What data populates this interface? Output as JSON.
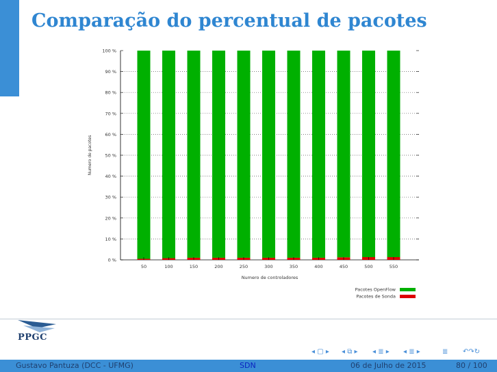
{
  "slide": {
    "title": "Comparação do percentual de pacotes"
  },
  "chart_data": {
    "type": "bar",
    "stacked": true,
    "categories": [
      "50",
      "100",
      "150",
      "200",
      "250",
      "300",
      "350",
      "400",
      "450",
      "500",
      "550"
    ],
    "series": [
      {
        "name": "Pacotes de Sonda",
        "color": "#dd0000",
        "values": [
          0.5,
          0.8,
          1.0,
          1.0,
          1.0,
          1.0,
          1.0,
          1.0,
          1.2,
          1.3,
          1.3
        ]
      },
      {
        "name": "Pacotes OpenFlow",
        "color": "#00b000",
        "values": [
          99.5,
          99.2,
          99.0,
          99.0,
          99.0,
          99.0,
          99.0,
          99.0,
          98.8,
          98.7,
          98.7
        ]
      }
    ],
    "ylim": [
      0,
      100
    ],
    "yticks": [
      "0 %",
      "10 %",
      "20 %",
      "30 %",
      "40 %",
      "50 %",
      "60 %",
      "70 %",
      "80 %",
      "90 %",
      "100 %"
    ],
    "xlabel": "Numero de controladores",
    "ylabel": "Numero de pacotes",
    "grid": "horizontal dotted",
    "legend": [
      {
        "label": "Pacotes OpenFlow",
        "color": "#00b000"
      },
      {
        "label": "Pacotes de Sonda",
        "color": "#dd0000"
      }
    ],
    "legend_position": "bottom-right"
  },
  "logo": {
    "text": "PPGC"
  },
  "footer": {
    "author": "Gustavo Pantuza (DCC - UFMG)",
    "short_title": "SDN",
    "date": "06 de Julho de 2015",
    "page": "80 / 100"
  },
  "nav": {
    "frame": "◂ ▢ ▸",
    "subsection": "◂ ⧉ ▸",
    "section": "◂ ≣ ▸",
    "subsubsection": "◂ ≣ ▸",
    "align": "≣",
    "search": "↶↷↻"
  }
}
